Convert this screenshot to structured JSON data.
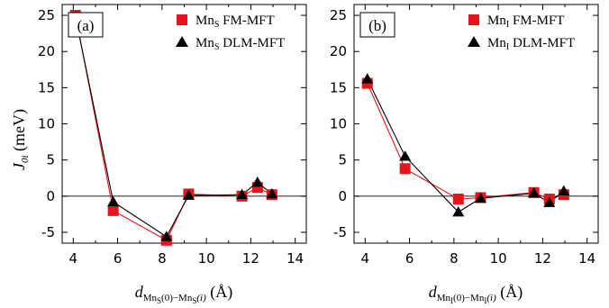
{
  "chart_data": [
    {
      "type": "line",
      "panel_label": "(a)",
      "xlim": [
        3.5,
        14.5
      ],
      "ylim": [
        -6.5,
        26.5
      ],
      "xticks": [
        4,
        6,
        8,
        10,
        12,
        14
      ],
      "yticks": [
        -5,
        0,
        5,
        10,
        15,
        20,
        25
      ],
      "zero_line": true,
      "legend_position": "top-right",
      "series": [
        {
          "name_main": "Mn",
          "name_sub": "S",
          "name_rest": " FM-MFT",
          "color": "#e8141b",
          "marker": "square",
          "x": [
            4.1,
            5.8,
            8.2,
            9.2,
            11.6,
            12.3,
            12.95
          ],
          "y": [
            25.0,
            -2.0,
            -6.1,
            0.3,
            0.0,
            1.2,
            0.2
          ]
        },
        {
          "name_main": "Mn",
          "name_sub": "S",
          "name_rest": " DLM-MFT",
          "color": "#000000",
          "marker": "triangle",
          "x": [
            4.1,
            5.8,
            8.2,
            9.2,
            11.6,
            12.3,
            12.95
          ],
          "y": [
            24.8,
            -0.8,
            -5.6,
            0.1,
            0.2,
            1.9,
            0.3
          ]
        }
      ]
    },
    {
      "type": "line",
      "panel_label": "(b)",
      "xlim": [
        3.5,
        14.5
      ],
      "ylim": [
        -6.5,
        26.5
      ],
      "xticks": [
        4,
        6,
        8,
        10,
        12,
        14
      ],
      "yticks": [
        -5,
        0,
        5,
        10,
        15,
        20,
        25
      ],
      "zero_line": true,
      "legend_position": "top-right",
      "series": [
        {
          "name_main": "Mn",
          "name_sub": "I",
          "name_rest": " FM-MFT",
          "color": "#e8141b",
          "marker": "square",
          "x": [
            4.1,
            5.8,
            8.2,
            9.2,
            11.6,
            12.3,
            12.95
          ],
          "y": [
            15.6,
            3.8,
            -0.4,
            -0.2,
            0.5,
            -0.4,
            0.2
          ]
        },
        {
          "name_main": "Mn",
          "name_sub": "I",
          "name_rest": " DLM-MFT",
          "color": "#000000",
          "marker": "triangle",
          "x": [
            4.1,
            5.8,
            8.2,
            9.2,
            11.6,
            12.3,
            12.95
          ],
          "y": [
            16.2,
            5.5,
            -2.2,
            -0.3,
            0.4,
            -0.9,
            0.7
          ]
        }
      ]
    }
  ],
  "labels": {
    "ylabel_main": "J",
    "ylabel_sub": "0i",
    "ylabel_unit": " (meV)",
    "xlabel_a_main": "d",
    "xlabel_a_sub1": "Mn",
    "xlabel_a_subsub1": "S",
    "xlabel_a_mid": "(0)−Mn",
    "xlabel_a_subsub2": "S",
    "xlabel_a_end": "(i)",
    "xlabel_a_unit": " (Å)",
    "xlabel_b_main": "d",
    "xlabel_b_sub1": "Mn",
    "xlabel_b_subsub1": "I",
    "xlabel_b_mid": "(0)−Mn",
    "xlabel_b_subsub2": "I",
    "xlabel_b_end": "(i)",
    "xlabel_b_unit": " (Å)"
  }
}
